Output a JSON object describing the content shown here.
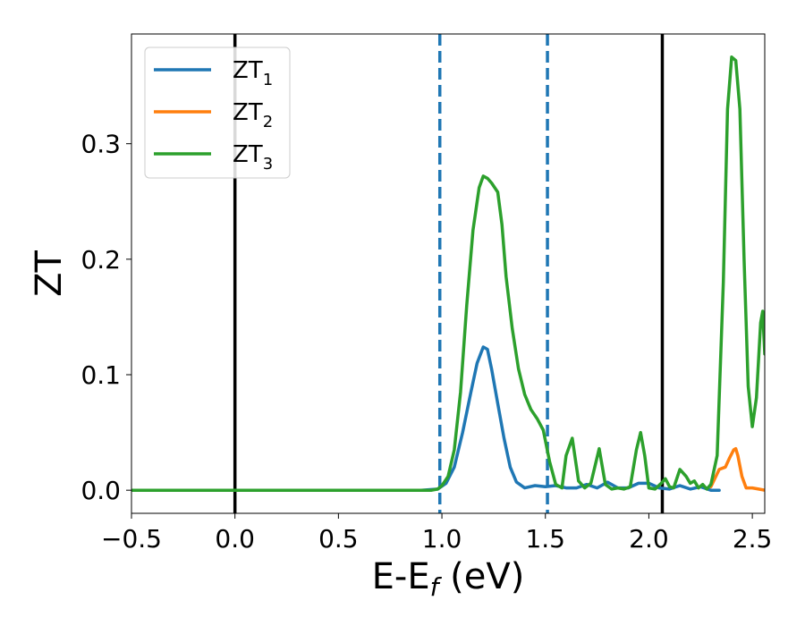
{
  "chart_data": {
    "type": "line",
    "xlabel_main": "E-E",
    "xlabel_sub": "f",
    "xlabel_unit": " (eV)",
    "ylabel": "ZT",
    "xlim": [
      -0.5,
      2.56
    ],
    "ylim": [
      -0.02,
      0.395
    ],
    "xticks": [
      -0.5,
      0.0,
      0.5,
      1.0,
      1.5,
      2.0,
      2.5
    ],
    "xtick_labels": [
      "−0.5",
      "0.0",
      "0.5",
      "1.0",
      "1.5",
      "2.0",
      "2.5"
    ],
    "yticks": [
      0.0,
      0.1,
      0.2,
      0.3
    ],
    "ytick_labels": [
      "0.0",
      "0.1",
      "0.2",
      "0.3"
    ],
    "grid": false,
    "legend_position": "top-left",
    "vlines": [
      {
        "x": 0.0,
        "style": "solid",
        "color": "#000000"
      },
      {
        "x": 0.99,
        "style": "dashed",
        "color": "#1f77b4"
      },
      {
        "x": 1.51,
        "style": "dashed",
        "color": "#1f77b4"
      },
      {
        "x": 2.065,
        "style": "solid",
        "color": "#000000"
      }
    ],
    "series": [
      {
        "name_main": "ZT",
        "name_sub": "1",
        "color": "#1f77b4",
        "x": [
          -0.5,
          0.9,
          0.98,
          1.02,
          1.06,
          1.1,
          1.14,
          1.17,
          1.2,
          1.22,
          1.24,
          1.27,
          1.3,
          1.33,
          1.36,
          1.4,
          1.45,
          1.5,
          1.55,
          1.6,
          1.65,
          1.7,
          1.75,
          1.8,
          1.85,
          1.9,
          1.95,
          2.0,
          2.05,
          2.1,
          2.15,
          2.2,
          2.25,
          2.3,
          2.34
        ],
        "y": [
          0.0,
          0.0,
          0.001,
          0.006,
          0.02,
          0.05,
          0.085,
          0.11,
          0.124,
          0.122,
          0.105,
          0.075,
          0.045,
          0.02,
          0.007,
          0.002,
          0.004,
          0.003,
          0.004,
          0.002,
          0.002,
          0.005,
          0.002,
          0.007,
          0.002,
          0.002,
          0.006,
          0.006,
          0.002,
          0.001,
          0.004,
          0.001,
          0.003,
          0.0,
          0.0
        ]
      },
      {
        "name_main": "ZT",
        "name_sub": "2",
        "color": "#ff7f0e",
        "x": [
          2.3,
          2.34,
          2.37,
          2.39,
          2.41,
          2.42,
          2.43,
          2.45,
          2.47,
          2.5,
          2.53,
          2.56
        ],
        "y": [
          0.003,
          0.018,
          0.02,
          0.028,
          0.035,
          0.036,
          0.03,
          0.012,
          0.002,
          0.002,
          0.001,
          0.0
        ]
      },
      {
        "name_main": "ZT",
        "name_sub": "3",
        "color": "#2ca02c",
        "x": [
          -0.5,
          0.9,
          0.95,
          0.98,
          1.0,
          1.03,
          1.06,
          1.09,
          1.12,
          1.15,
          1.18,
          1.2,
          1.22,
          1.24,
          1.27,
          1.29,
          1.31,
          1.34,
          1.37,
          1.4,
          1.43,
          1.46,
          1.49,
          1.52,
          1.55,
          1.58,
          1.6,
          1.63,
          1.66,
          1.69,
          1.72,
          1.76,
          1.79,
          1.82,
          1.85,
          1.88,
          1.91,
          1.94,
          1.96,
          1.98,
          2.0,
          2.03,
          2.06,
          2.08,
          2.1,
          2.12,
          2.15,
          2.18,
          2.2,
          2.22,
          2.24,
          2.26,
          2.28,
          2.3,
          2.33,
          2.36,
          2.38,
          2.4,
          2.42,
          2.44,
          2.46,
          2.48,
          2.5,
          2.52,
          2.54,
          2.55,
          2.56
        ],
        "y": [
          0.0,
          0.0,
          0.0,
          0.001,
          0.004,
          0.012,
          0.035,
          0.085,
          0.16,
          0.225,
          0.262,
          0.272,
          0.27,
          0.266,
          0.258,
          0.23,
          0.185,
          0.14,
          0.105,
          0.083,
          0.07,
          0.062,
          0.052,
          0.025,
          0.005,
          0.002,
          0.03,
          0.045,
          0.008,
          0.002,
          0.006,
          0.036,
          0.005,
          0.001,
          0.002,
          0.001,
          0.003,
          0.035,
          0.05,
          0.03,
          0.002,
          0.001,
          0.006,
          0.01,
          0.003,
          0.002,
          0.018,
          0.012,
          0.006,
          0.008,
          0.002,
          0.005,
          0.001,
          0.005,
          0.03,
          0.18,
          0.33,
          0.375,
          0.372,
          0.33,
          0.2,
          0.09,
          0.055,
          0.08,
          0.145,
          0.155,
          0.118
        ]
      }
    ]
  }
}
